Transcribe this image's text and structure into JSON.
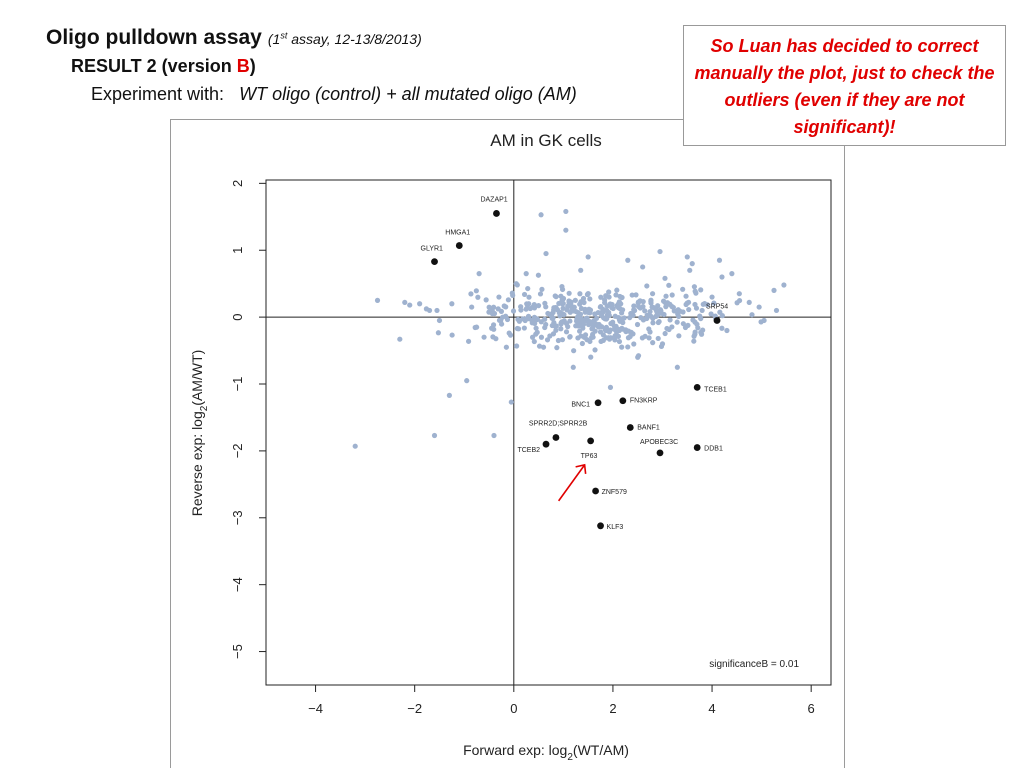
{
  "header": {
    "title": "Oligo pulldown assay",
    "assay_prefix": "(1",
    "assay_sup": "st",
    "assay_rest": " assay, 12-13/8/2013)",
    "result_label": "RESULT  2  (version ",
    "result_version": "B",
    "result_close": ")",
    "experiment_label": "Experiment with:",
    "experiment_detail": "WT oligo (control)  +  all mutated oligo (AM)"
  },
  "note": {
    "text": "So Luan has decided to correct manually the plot, just to check the outliers (even if they are not significant)!",
    "color": "#e00000"
  },
  "colors": {
    "background_points": "#9fb2cf",
    "significant_points": "#111111",
    "annotation_arrow": "#e00000"
  },
  "chart_data": {
    "type": "scatter",
    "title": "AM in GK cells",
    "xlabel_main": "Forward exp: log",
    "xlabel_sub": "2",
    "xlabel_tail": "(WT/AM)",
    "ylabel_main": "Reverse exp: log",
    "ylabel_sub": "2",
    "ylabel_tail": "(AM/WT)",
    "xlim": [
      -5,
      6.4
    ],
    "ylim": [
      -5.5,
      2.05
    ],
    "xticks": [
      -4,
      -2,
      0,
      2,
      4,
      6
    ],
    "yticks": [
      2,
      1,
      0,
      -1,
      -2,
      -3,
      -4,
      -5
    ],
    "grid": false,
    "reference_lines": {
      "x": 0,
      "y": 0
    },
    "legend_text": "significanceB = 0.01",
    "background_cloud_note": "dense cloud of several hundred non-significant proteins centred near (1.9, 0.0); most x within -0.5..4.5, y within -0.6..0.6",
    "series": [
      {
        "name": "Non-significant proteins (sample of visible outliers)",
        "color": "#9fb2cf",
        "points": [
          [
            -3.2,
            -1.93
          ],
          [
            -2.75,
            0.25
          ],
          [
            -2.3,
            -0.33
          ],
          [
            -2.2,
            0.22
          ],
          [
            -2.1,
            0.18
          ],
          [
            -1.9,
            0.2
          ],
          [
            -1.7,
            0.1
          ],
          [
            -1.6,
            -1.77
          ],
          [
            -1.5,
            -0.05
          ],
          [
            -1.3,
            -1.17
          ],
          [
            -0.95,
            -0.95
          ],
          [
            -0.85,
            0.15
          ],
          [
            -0.75,
            -0.15
          ],
          [
            -0.6,
            -0.3
          ],
          [
            -0.4,
            -1.77
          ],
          [
            -0.3,
            0.3
          ],
          [
            -0.15,
            -0.45
          ],
          [
            -0.05,
            -1.27
          ],
          [
            0.05,
            0.5
          ],
          [
            0.25,
            0.65
          ],
          [
            0.6,
            -0.45
          ],
          [
            0.55,
            1.53
          ],
          [
            1.05,
            1.58
          ],
          [
            1.05,
            1.3
          ],
          [
            0.65,
            0.95
          ],
          [
            1.5,
            0.9
          ],
          [
            1.35,
            0.7
          ],
          [
            2.3,
            0.85
          ],
          [
            2.6,
            0.75
          ],
          [
            2.95,
            0.98
          ],
          [
            3.05,
            0.58
          ],
          [
            3.5,
            0.9
          ],
          [
            3.6,
            0.8
          ],
          [
            3.55,
            0.7
          ],
          [
            4.15,
            0.85
          ],
          [
            4.2,
            0.6
          ],
          [
            4.4,
            0.65
          ],
          [
            4.55,
            0.35
          ],
          [
            4.75,
            0.22
          ],
          [
            4.95,
            0.15
          ],
          [
            5.05,
            -0.05
          ],
          [
            5.25,
            0.4
          ],
          [
            5.3,
            0.1
          ],
          [
            5.45,
            0.48
          ],
          [
            1.95,
            -1.05
          ],
          [
            1.2,
            -0.75
          ],
          [
            2.5,
            -0.6
          ],
          [
            3.0,
            -0.4
          ],
          [
            3.3,
            -0.75
          ],
          [
            0.9,
            -0.35
          ],
          [
            -0.7,
            0.65
          ],
          [
            4.0,
            0.3
          ],
          [
            4.3,
            -0.2
          ],
          [
            3.8,
            0.1
          ],
          [
            -1.25,
            0.2
          ],
          [
            -1.55,
            0.1
          ],
          [
            0.3,
            0.2
          ],
          [
            0.8,
            -0.25
          ],
          [
            1.6,
            -0.3
          ],
          [
            2.8,
            0.35
          ]
        ]
      },
      {
        "name": "Significant proteins",
        "color": "#111111",
        "points": [
          {
            "x": -0.35,
            "y": 1.55,
            "label": "DAZAP1"
          },
          {
            "x": -1.1,
            "y": 1.07,
            "label": "HMGA1"
          },
          {
            "x": -1.6,
            "y": 0.83,
            "label": "GLYR1"
          },
          {
            "x": 4.1,
            "y": -0.05,
            "label": "SRP54"
          },
          {
            "x": 3.7,
            "y": -1.05,
            "label": "TCEB1"
          },
          {
            "x": 1.7,
            "y": -1.28,
            "label": "BNC1"
          },
          {
            "x": 2.2,
            "y": -1.25,
            "label": "FN3KRP"
          },
          {
            "x": 2.35,
            "y": -1.65,
            "label": "BANF1"
          },
          {
            "x": 0.85,
            "y": -1.8,
            "label": "SPRR2D;SPRR2B"
          },
          {
            "x": 0.65,
            "y": -1.9,
            "label": "TCEB2"
          },
          {
            "x": 1.55,
            "y": -1.85,
            "label": "TP63"
          },
          {
            "x": 2.95,
            "y": -2.03,
            "label": "APOBEC3C"
          },
          {
            "x": 3.7,
            "y": -1.95,
            "label": "DDB1"
          },
          {
            "x": 1.65,
            "y": -2.6,
            "label": "ZNF579"
          },
          {
            "x": 1.75,
            "y": -3.12,
            "label": "KLF3"
          }
        ]
      }
    ],
    "annotation": {
      "type": "arrow",
      "color": "#e00000",
      "points_to": "TP63"
    }
  }
}
